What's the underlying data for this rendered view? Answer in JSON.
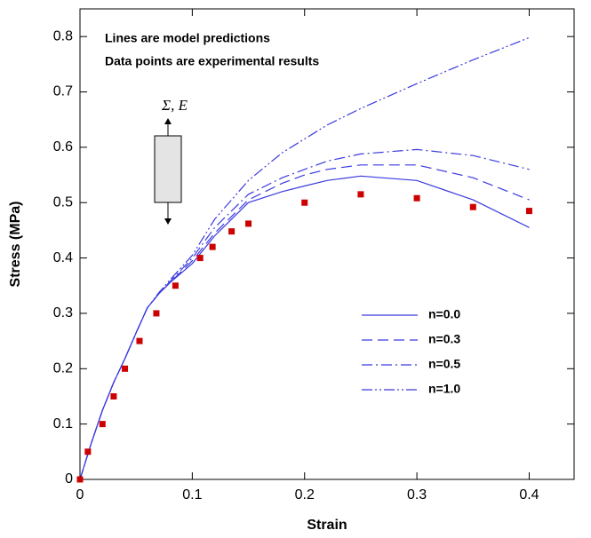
{
  "chart_data": {
    "type": "line",
    "xlabel": "Strain",
    "ylabel": "Stress (MPa)",
    "annotations": [
      "Lines are model predictions",
      "Data points are experimental results"
    ],
    "specimen_label": "Σ, E",
    "xlim": [
      0,
      0.44
    ],
    "ylim": [
      0,
      0.85
    ],
    "xticks": [
      0,
      0.1,
      0.2,
      0.3,
      0.4
    ],
    "yticks": [
      0,
      0.1,
      0.2,
      0.3,
      0.4,
      0.5,
      0.6,
      0.7,
      0.8
    ],
    "x": [
      0,
      0.01,
      0.02,
      0.03,
      0.04,
      0.05,
      0.06,
      0.07,
      0.08,
      0.1,
      0.12,
      0.15,
      0.18,
      0.2,
      0.22,
      0.25,
      0.3,
      0.35,
      0.4
    ],
    "series": [
      {
        "name": "n=0.0",
        "color": "#3a3ae0",
        "dash": "solid",
        "values": [
          0,
          0.065,
          0.125,
          0.175,
          0.218,
          0.265,
          0.31,
          0.335,
          0.355,
          0.39,
          0.44,
          0.5,
          0.52,
          0.53,
          0.54,
          0.548,
          0.54,
          0.505,
          0.455
        ]
      },
      {
        "name": "n=0.3",
        "color": "#3a3ae0",
        "dash": "dashed",
        "values": [
          0,
          0.065,
          0.125,
          0.175,
          0.218,
          0.265,
          0.31,
          0.335,
          0.355,
          0.395,
          0.445,
          0.505,
          0.535,
          0.55,
          0.56,
          0.568,
          0.568,
          0.545,
          0.505
        ]
      },
      {
        "name": "n=0.5",
        "color": "#3a3ae0",
        "dash": "dashdot",
        "values": [
          0,
          0.065,
          0.125,
          0.175,
          0.218,
          0.265,
          0.31,
          0.335,
          0.357,
          0.4,
          0.455,
          0.515,
          0.545,
          0.56,
          0.575,
          0.588,
          0.596,
          0.585,
          0.56
        ]
      },
      {
        "name": "n=1.0",
        "color": "#3a3ae0",
        "dash": "dashdotdot",
        "values": [
          0,
          0.065,
          0.125,
          0.175,
          0.218,
          0.265,
          0.31,
          0.337,
          0.36,
          0.405,
          0.47,
          0.54,
          0.59,
          0.615,
          0.64,
          0.67,
          0.715,
          0.758,
          0.798
        ]
      }
    ],
    "points": {
      "color": "#cc0000",
      "x": [
        0,
        0.007,
        0.02,
        0.03,
        0.04,
        0.053,
        0.068,
        0.085,
        0.107,
        0.118,
        0.135,
        0.15,
        0.2,
        0.25,
        0.3,
        0.35,
        0.4
      ],
      "values": [
        0,
        0.05,
        0.1,
        0.15,
        0.2,
        0.25,
        0.3,
        0.35,
        0.4,
        0.42,
        0.448,
        0.462,
        0.5,
        0.515,
        0.508,
        0.492,
        0.485
      ]
    }
  }
}
